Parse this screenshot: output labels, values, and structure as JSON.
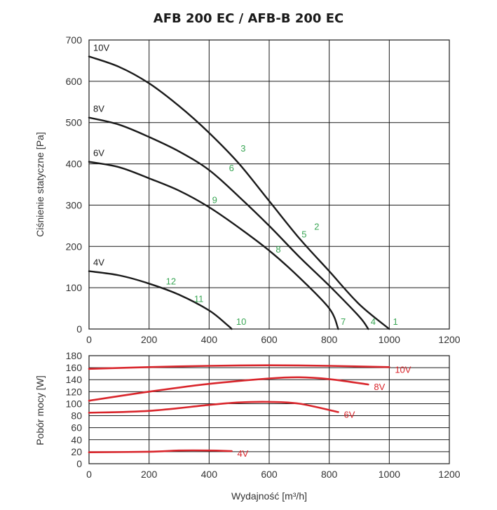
{
  "title": "AFB 200 EC / AFB-B 200 EC",
  "chart_data": [
    {
      "type": "line",
      "title": "AFB 200 EC / AFB-B 200 EC",
      "xlabel": "Wydajność [m³/h]",
      "ylabel": "Ciśnienie statyczne [Pa]",
      "xlim": [
        0,
        1200
      ],
      "ylim": [
        0,
        700
      ],
      "xticks": [
        "0",
        "200",
        "400",
        "600",
        "800",
        "1000",
        "1200"
      ],
      "yticks": [
        "0",
        "100",
        "200",
        "300",
        "400",
        "500",
        "600",
        "700"
      ],
      "grid": true,
      "color": "#1a1a1a",
      "series": [
        {
          "name": "10V",
          "x": [
            0,
            100,
            200,
            300,
            400,
            500,
            600,
            700,
            800,
            900,
            1000
          ],
          "y": [
            660,
            635,
            595,
            540,
            475,
            400,
            310,
            220,
            140,
            60,
            0
          ]
        },
        {
          "name": "8V",
          "x": [
            0,
            100,
            200,
            300,
            400,
            500,
            600,
            700,
            800,
            900,
            930
          ],
          "y": [
            512,
            495,
            465,
            430,
            385,
            320,
            250,
            175,
            105,
            30,
            0
          ]
        },
        {
          "name": "6V",
          "x": [
            0,
            100,
            200,
            300,
            400,
            500,
            600,
            700,
            800,
            830
          ],
          "y": [
            405,
            392,
            365,
            335,
            295,
            245,
            190,
            125,
            50,
            0
          ]
        },
        {
          "name": "4V",
          "x": [
            0,
            100,
            200,
            300,
            400,
            460,
            475
          ],
          "y": [
            140,
            130,
            110,
            83,
            45,
            10,
            0
          ]
        }
      ],
      "points": [
        {
          "label": "1",
          "x": 1012,
          "y": 10
        },
        {
          "label": "2",
          "x": 750,
          "y": 240
        },
        {
          "label": "3",
          "x": 505,
          "y": 430
        },
        {
          "label": "4",
          "x": 938,
          "y": 10
        },
        {
          "label": "5",
          "x": 708,
          "y": 222
        },
        {
          "label": "6",
          "x": 466,
          "y": 382
        },
        {
          "label": "7",
          "x": 838,
          "y": 10
        },
        {
          "label": "8",
          "x": 622,
          "y": 185
        },
        {
          "label": "9",
          "x": 410,
          "y": 305
        },
        {
          "label": "10",
          "x": 490,
          "y": 10
        },
        {
          "label": "11",
          "x": 350,
          "y": 65
        },
        {
          "label": "12",
          "x": 256,
          "y": 108
        }
      ]
    },
    {
      "type": "line",
      "xlabel": "Wydajność [m³/h]",
      "ylabel": "Pobór mocy [W]",
      "xlim": [
        0,
        1200
      ],
      "ylim": [
        0,
        180
      ],
      "xticks": [
        "0",
        "200",
        "400",
        "600",
        "800",
        "1000",
        "1200"
      ],
      "yticks": [
        "0",
        "20",
        "40",
        "60",
        "80",
        "100",
        "120",
        "140",
        "160",
        "180"
      ],
      "grid": true,
      "color": "#d9262c",
      "series": [
        {
          "name": "10V",
          "x": [
            0,
            200,
            400,
            600,
            800,
            1000
          ],
          "y": [
            158,
            161,
            163,
            164,
            163,
            161
          ]
        },
        {
          "name": "8V",
          "x": [
            0,
            200,
            400,
            600,
            700,
            800,
            930
          ],
          "y": [
            105,
            120,
            133,
            142,
            144,
            141,
            132
          ]
        },
        {
          "name": "6V",
          "x": [
            0,
            200,
            400,
            500,
            600,
            700,
            830
          ],
          "y": [
            85,
            88,
            98,
            102,
            103,
            100,
            86
          ]
        },
        {
          "name": "4V",
          "x": [
            0,
            200,
            300,
            400,
            475
          ],
          "y": [
            19,
            20,
            22,
            22,
            21
          ]
        }
      ]
    }
  ]
}
